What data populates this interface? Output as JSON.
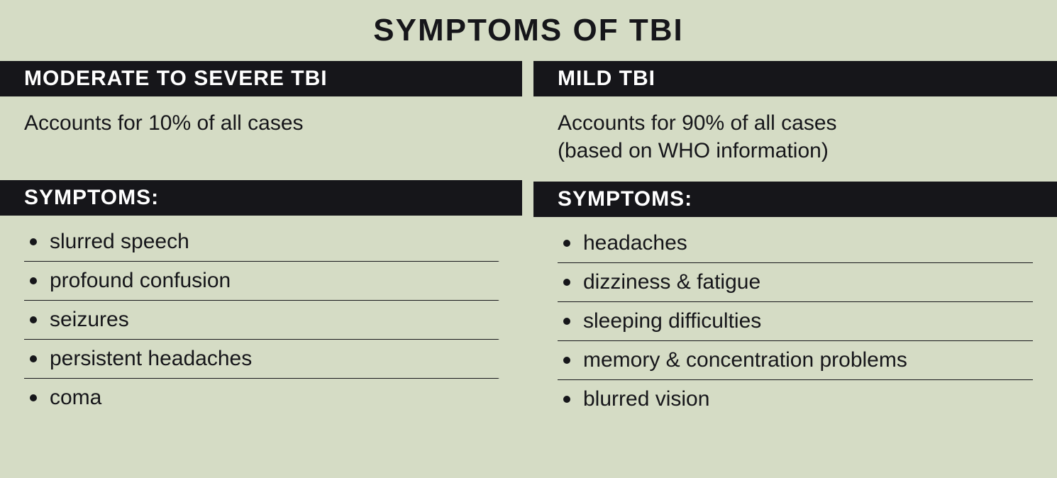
{
  "page": {
    "title": "SYMPTOMS OF TBI",
    "title_fontsize": 44,
    "body_fontsize": 30,
    "heading_fontsize": 30,
    "background_color": "#d5dcc5",
    "bar_bg_color": "#16161a",
    "bar_text_color": "#ffffff",
    "text_color": "#16161a",
    "rule_color": "#16161a"
  },
  "columns": [
    {
      "heading": "MODERATE TO SEVERE TBI",
      "description": "Accounts for 10% of all cases",
      "symptoms_label": "SYMPTOMS:",
      "symptoms": [
        "slurred speech",
        "profound confusion",
        "seizures",
        "persistent headaches",
        "coma"
      ]
    },
    {
      "heading": "MILD TBI",
      "description": "Accounts for 90% of all cases\n(based on WHO information)",
      "symptoms_label": "SYMPTOMS:",
      "symptoms": [
        "headaches",
        "dizziness &  fatigue",
        "sleeping difficulties",
        "memory & concentration problems",
        "blurred vision"
      ]
    }
  ]
}
